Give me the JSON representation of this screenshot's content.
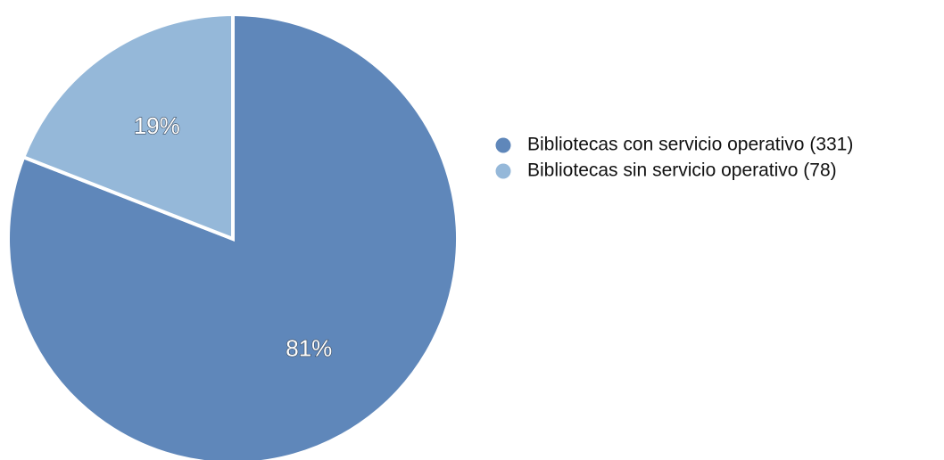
{
  "chart_data": {
    "type": "pie",
    "title": "",
    "slices": [
      {
        "name": "Bibliotecas con servicio operativo (331)",
        "value": 331,
        "label": "81%",
        "color": "#5f87ba"
      },
      {
        "name": "Bibliotecas sin servicio operativo (78)",
        "value": 78,
        "label": "19%",
        "color": "#95b8d9"
      }
    ],
    "legend": {
      "placement": "right"
    },
    "slice_separator_color": "#ffffff"
  }
}
